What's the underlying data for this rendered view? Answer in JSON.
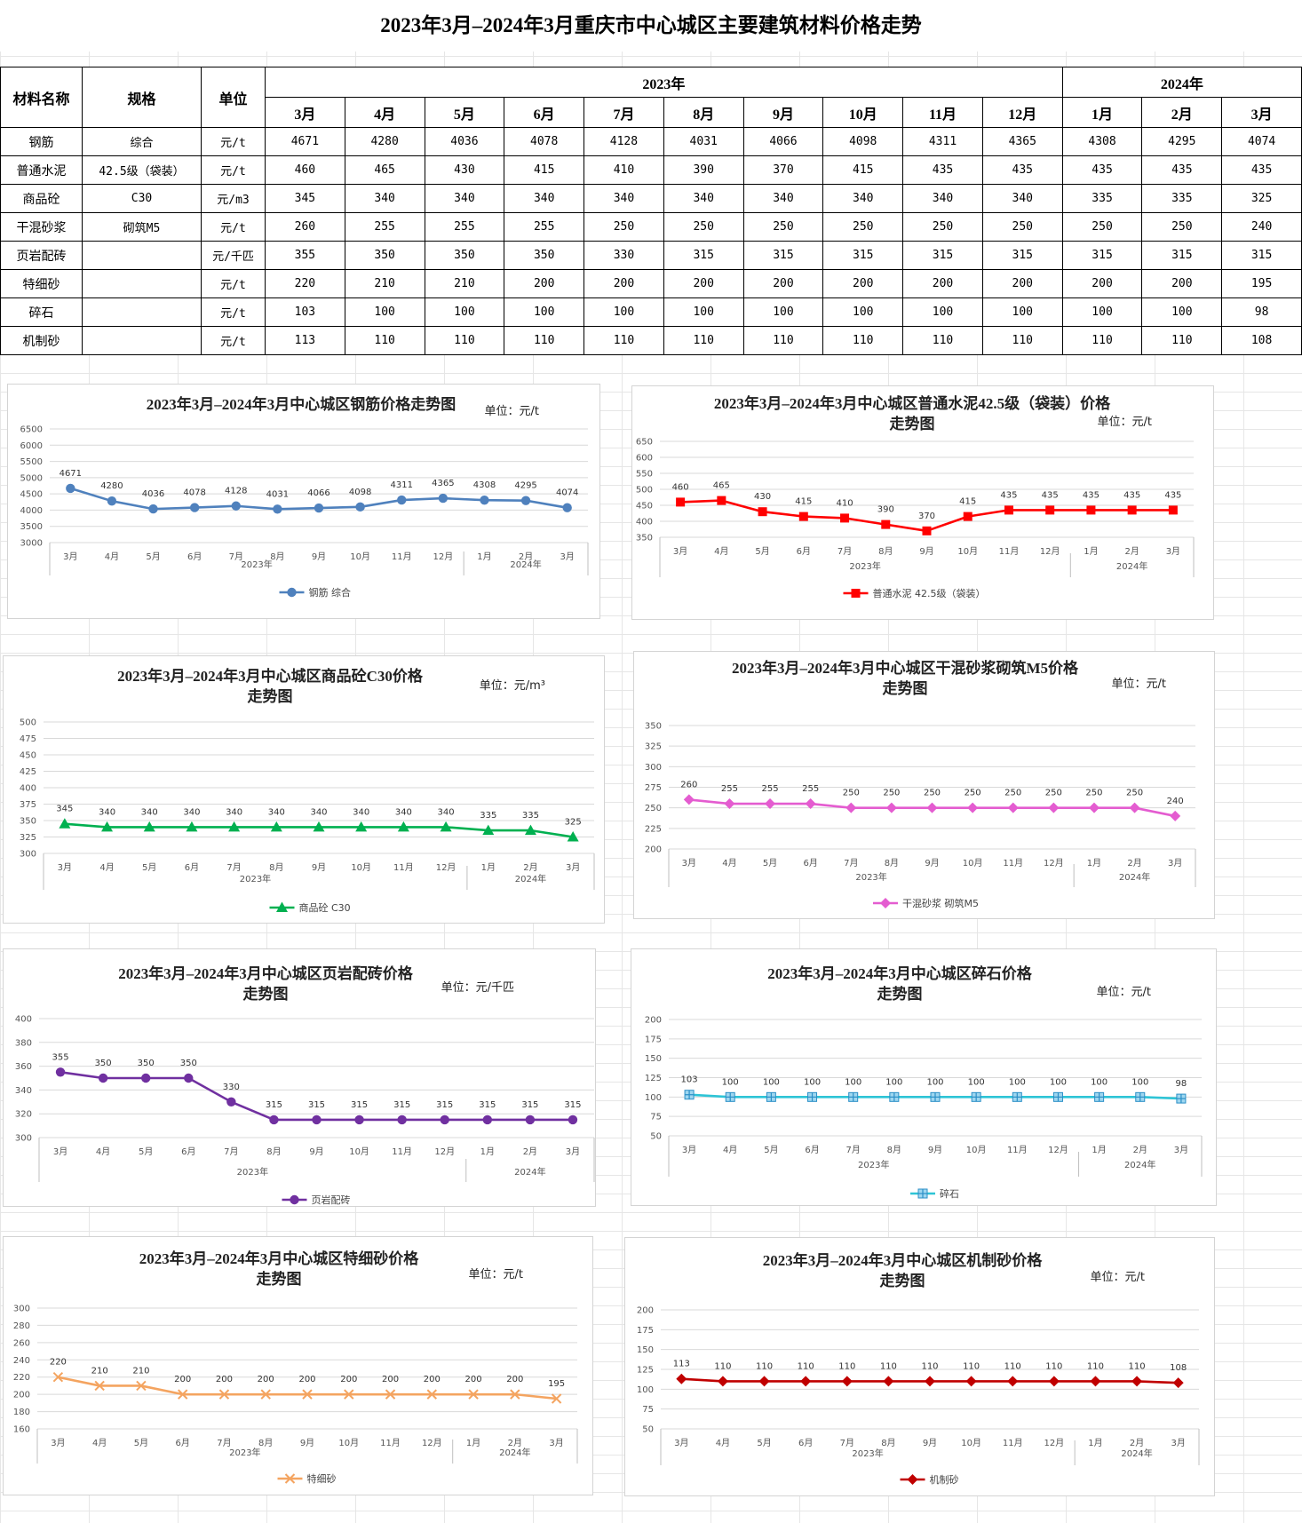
{
  "title": "2023年3月–2024年3月重庆市中心城区主要建筑材料价格走势",
  "table": {
    "headers": {
      "name": "材料名称",
      "spec": "规格",
      "unit": "单位"
    },
    "years": [
      {
        "label": "2023年",
        "span": 10
      },
      {
        "label": "2024年",
        "span": 3
      }
    ],
    "months": [
      "3月",
      "4月",
      "5月",
      "6月",
      "7月",
      "8月",
      "9月",
      "10月",
      "11月",
      "12月",
      "1月",
      "2月",
      "3月"
    ],
    "rows": [
      {
        "name": "钢筋",
        "spec": "综合",
        "unit": "元/t",
        "values": [
          "4671",
          "4280",
          "4036",
          "4078",
          "4128",
          "4031",
          "4066",
          "4098",
          "4311",
          "4365",
          "4308",
          "4295",
          "4074"
        ]
      },
      {
        "name": "普通水泥",
        "spec": "42.5级（袋装）",
        "unit": "元/t",
        "values": [
          "460",
          "465",
          "430",
          "415",
          "410",
          "390",
          "370",
          "415",
          "435",
          "435",
          "435",
          "435",
          "435"
        ]
      },
      {
        "name": "商品砼",
        "spec": "C30",
        "unit": "元/m3",
        "values": [
          "345",
          "340",
          "340",
          "340",
          "340",
          "340",
          "340",
          "340",
          "340",
          "340",
          "335",
          "335",
          "325"
        ]
      },
      {
        "name": "干混砂浆",
        "spec": "砌筑M5",
        "unit": "元/t",
        "values": [
          "260",
          "255",
          "255",
          "255",
          "250",
          "250",
          "250",
          "250",
          "250",
          "250",
          "250",
          "250",
          "240"
        ]
      },
      {
        "name": "页岩配砖",
        "spec": "",
        "unit": "元/千匹",
        "values": [
          "355",
          "350",
          "350",
          "350",
          "330",
          "315",
          "315",
          "315",
          "315",
          "315",
          "315",
          "315",
          "315"
        ]
      },
      {
        "name": "特细砂",
        "spec": "",
        "unit": "元/t",
        "values": [
          "220",
          "210",
          "210",
          "200",
          "200",
          "200",
          "200",
          "200",
          "200",
          "200",
          "200",
          "200",
          "195"
        ]
      },
      {
        "name": "碎石",
        "spec": "",
        "unit": "元/t",
        "values": [
          "103",
          "100",
          "100",
          "100",
          "100",
          "100",
          "100",
          "100",
          "100",
          "100",
          "100",
          "100",
          "98"
        ]
      },
      {
        "name": "机制砂",
        "spec": "",
        "unit": "元/t",
        "values": [
          "113",
          "110",
          "110",
          "110",
          "110",
          "110",
          "110",
          "110",
          "110",
          "110",
          "110",
          "110",
          "108"
        ]
      }
    ]
  },
  "chart_data": [
    {
      "id": "rebar",
      "type": "line",
      "title": [
        "2023年3月–2024年3月中心城区钢筋价格走势图"
      ],
      "unit_label": "单位：元/t",
      "categories": [
        "3月",
        "4月",
        "5月",
        "6月",
        "7月",
        "8月",
        "9月",
        "10月",
        "11月",
        "12月",
        "1月",
        "2月",
        "3月"
      ],
      "year_groups": [
        {
          "label": "2023年",
          "count": 10
        },
        {
          "label": "2024年",
          "count": 3
        }
      ],
      "series": [
        {
          "name": "钢筋 综合",
          "values": [
            4671,
            4280,
            4036,
            4078,
            4128,
            4031,
            4066,
            4098,
            4311,
            4365,
            4308,
            4295,
            4074
          ]
        }
      ],
      "ylim": [
        3000,
        6500
      ],
      "ystep": 500,
      "color": "#4F81BD",
      "marker": "circle",
      "legend_position": "bottom",
      "grid": true
    },
    {
      "id": "cement",
      "type": "line",
      "title": [
        "2023年3月–2024年3月中心城区普通水泥42.5级（袋装）价格",
        "走势图"
      ],
      "unit_label": "单位：元/t",
      "categories": [
        "3月",
        "4月",
        "5月",
        "6月",
        "7月",
        "8月",
        "9月",
        "10月",
        "11月",
        "12月",
        "1月",
        "2月",
        "3月"
      ],
      "year_groups": [
        {
          "label": "2023年",
          "count": 10
        },
        {
          "label": "2024年",
          "count": 3
        }
      ],
      "series": [
        {
          "name": "普通水泥 42.5级（袋装）",
          "values": [
            460,
            465,
            430,
            415,
            410,
            390,
            370,
            415,
            435,
            435,
            435,
            435,
            435
          ]
        }
      ],
      "ylim": [
        350,
        650
      ],
      "ystep": 50,
      "color": "#FF0000",
      "marker": "square",
      "legend_position": "bottom",
      "grid": true
    },
    {
      "id": "concrete",
      "type": "line",
      "title": [
        "2023年3月–2024年3月中心城区商品砼C30价格",
        "走势图"
      ],
      "unit_label": "单位：元/m³",
      "categories": [
        "3月",
        "4月",
        "5月",
        "6月",
        "7月",
        "8月",
        "9月",
        "10月",
        "11月",
        "12月",
        "1月",
        "2月",
        "3月"
      ],
      "year_groups": [
        {
          "label": "2023年",
          "count": 10
        },
        {
          "label": "2024年",
          "count": 3
        }
      ],
      "series": [
        {
          "name": "商品砼 C30",
          "values": [
            345,
            340,
            340,
            340,
            340,
            340,
            340,
            340,
            340,
            340,
            335,
            335,
            325
          ]
        }
      ],
      "ylim": [
        300,
        500
      ],
      "ystep": 25,
      "color": "#00B050",
      "marker": "triangle",
      "legend_position": "bottom",
      "grid": true
    },
    {
      "id": "mortar",
      "type": "line",
      "title": [
        "2023年3月–2024年3月中心城区干混砂浆砌筑M5价格",
        "走势图"
      ],
      "unit_label": "单位：元/t",
      "categories": [
        "3月",
        "4月",
        "5月",
        "6月",
        "7月",
        "8月",
        "9月",
        "10月",
        "11月",
        "12月",
        "1月",
        "2月",
        "3月"
      ],
      "year_groups": [
        {
          "label": "2023年",
          "count": 10
        },
        {
          "label": "2024年",
          "count": 3
        }
      ],
      "series": [
        {
          "name": "干混砂浆 砌筑M5",
          "values": [
            260,
            255,
            255,
            255,
            250,
            250,
            250,
            250,
            250,
            250,
            250,
            250,
            240
          ]
        }
      ],
      "ylim": [
        200,
        350
      ],
      "ystep": 25,
      "color": "#E45CD0",
      "marker": "diamond",
      "legend_position": "bottom",
      "grid": true
    },
    {
      "id": "brick",
      "type": "line",
      "title": [
        "2023年3月–2024年3月中心城区页岩配砖价格",
        "走势图"
      ],
      "unit_label": "单位：元/千匹",
      "categories": [
        "3月",
        "4月",
        "5月",
        "6月",
        "7月",
        "8月",
        "9月",
        "10月",
        "11月",
        "12月",
        "1月",
        "2月",
        "3月"
      ],
      "year_groups": [
        {
          "label": "2023年",
          "count": 10
        },
        {
          "label": "2024年",
          "count": 3
        }
      ],
      "series": [
        {
          "name": "页岩配砖",
          "values": [
            355,
            350,
            350,
            350,
            330,
            315,
            315,
            315,
            315,
            315,
            315,
            315,
            315
          ]
        }
      ],
      "ylim": [
        300,
        400
      ],
      "ystep": 20,
      "color": "#7030A0",
      "marker": "circle",
      "legend_position": "bottom",
      "grid": true
    },
    {
      "id": "gravel",
      "type": "line",
      "title": [
        "2023年3月–2024年3月中心城区碎石价格",
        "走势图"
      ],
      "unit_label": "单位：元/t",
      "categories": [
        "3月",
        "4月",
        "5月",
        "6月",
        "7月",
        "8月",
        "9月",
        "10月",
        "11月",
        "12月",
        "1月",
        "2月",
        "3月"
      ],
      "year_groups": [
        {
          "label": "2023年",
          "count": 10
        },
        {
          "label": "2024年",
          "count": 3
        }
      ],
      "series": [
        {
          "name": "碎石",
          "values": [
            103,
            100,
            100,
            100,
            100,
            100,
            100,
            100,
            100,
            100,
            100,
            100,
            98
          ]
        }
      ],
      "ylim": [
        50,
        200
      ],
      "ystep": 25,
      "color": "#2EC4D6",
      "marker": "plus",
      "legend_position": "bottom",
      "grid": true
    },
    {
      "id": "finesand",
      "type": "line",
      "title": [
        "2023年3月–2024年3月中心城区特细砂价格",
        "走势图"
      ],
      "unit_label": "单位：元/t",
      "categories": [
        "3月",
        "4月",
        "5月",
        "6月",
        "7月",
        "8月",
        "9月",
        "10月",
        "11月",
        "12月",
        "1月",
        "2月",
        "3月"
      ],
      "year_groups": [
        {
          "label": "2023年",
          "count": 10
        },
        {
          "label": "2024年",
          "count": 3
        }
      ],
      "series": [
        {
          "name": "特细砂",
          "values": [
            220,
            210,
            210,
            200,
            200,
            200,
            200,
            200,
            200,
            200,
            200,
            200,
            195
          ]
        }
      ],
      "ylim": [
        160,
        300
      ],
      "ystep": 20,
      "color": "#F4A460",
      "marker": "x",
      "legend_position": "bottom",
      "grid": true
    },
    {
      "id": "mechsand",
      "type": "line",
      "title": [
        "2023年3月–2024年3月中心城区机制砂价格",
        "走势图"
      ],
      "unit_label": "单位：元/t",
      "categories": [
        "3月",
        "4月",
        "5月",
        "6月",
        "7月",
        "8月",
        "9月",
        "10月",
        "11月",
        "12月",
        "1月",
        "2月",
        "3月"
      ],
      "year_groups": [
        {
          "label": "2023年",
          "count": 10
        },
        {
          "label": "2024年",
          "count": 3
        }
      ],
      "series": [
        {
          "name": "机制砂",
          "values": [
            113,
            110,
            110,
            110,
            110,
            110,
            110,
            110,
            110,
            110,
            110,
            110,
            108
          ]
        }
      ],
      "ylim": [
        50,
        200
      ],
      "ystep": 25,
      "color": "#C00000",
      "marker": "diamond",
      "legend_position": "bottom",
      "grid": true
    }
  ]
}
